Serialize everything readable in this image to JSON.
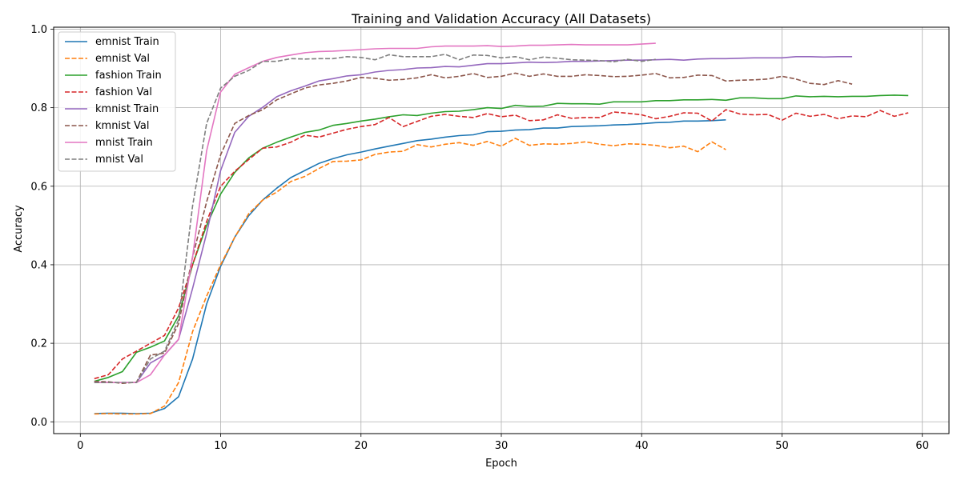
{
  "chart_data": {
    "type": "line",
    "title": "Training and Validation Accuracy (All Datasets)",
    "xlabel": "Epoch",
    "ylabel": "Accuracy",
    "xlim": [
      -1.9,
      61.9
    ],
    "ylim": [
      -0.03,
      1.005
    ],
    "xticks": [
      0,
      10,
      20,
      30,
      40,
      50,
      60
    ],
    "yticks": [
      0.0,
      0.2,
      0.4,
      0.6,
      0.8,
      1.0
    ],
    "grid": true,
    "legend_position": "top-left",
    "series": [
      {
        "name": "emnist Train",
        "color": "#1f77b4",
        "dash": "solid",
        "x": [
          1,
          2,
          3,
          4,
          5,
          6,
          7,
          8,
          9,
          10,
          11,
          12,
          13,
          14,
          15,
          16,
          17,
          18,
          19,
          20,
          21,
          22,
          23,
          24,
          25,
          26,
          27,
          28,
          29,
          30,
          31,
          32,
          33,
          34,
          35,
          36,
          37,
          38,
          39,
          40,
          41,
          42,
          43,
          44,
          45,
          46
        ],
        "y": [
          0.021,
          0.022,
          0.022,
          0.021,
          0.022,
          0.034,
          0.064,
          0.16,
          0.3,
          0.396,
          0.47,
          0.525,
          0.565,
          0.595,
          0.622,
          0.64,
          0.658,
          0.67,
          0.68,
          0.687,
          0.695,
          0.702,
          0.709,
          0.716,
          0.72,
          0.725,
          0.729,
          0.731,
          0.739,
          0.74,
          0.743,
          0.744,
          0.748,
          0.748,
          0.752,
          0.753,
          0.754,
          0.756,
          0.757,
          0.759,
          0.762,
          0.763,
          0.766,
          0.766,
          0.767,
          0.769
        ]
      },
      {
        "name": "emnist Val",
        "color": "#ff7f0e",
        "dash": "dashed",
        "x": [
          1,
          2,
          3,
          4,
          5,
          6,
          7,
          8,
          9,
          10,
          11,
          12,
          13,
          14,
          15,
          16,
          17,
          18,
          19,
          20,
          21,
          22,
          23,
          24,
          25,
          26,
          27,
          28,
          29,
          30,
          31,
          32,
          33,
          34,
          35,
          36,
          37,
          38,
          39,
          40,
          41,
          42,
          43,
          44,
          45,
          46
        ],
        "y": [
          0.02,
          0.021,
          0.02,
          0.02,
          0.021,
          0.04,
          0.1,
          0.23,
          0.32,
          0.4,
          0.47,
          0.53,
          0.565,
          0.585,
          0.612,
          0.625,
          0.645,
          0.663,
          0.664,
          0.667,
          0.681,
          0.687,
          0.689,
          0.706,
          0.7,
          0.707,
          0.711,
          0.704,
          0.714,
          0.702,
          0.722,
          0.704,
          0.708,
          0.707,
          0.709,
          0.713,
          0.707,
          0.703,
          0.708,
          0.707,
          0.704,
          0.698,
          0.702,
          0.688,
          0.713,
          0.693
        ]
      },
      {
        "name": "fashion Train",
        "color": "#2ca02c",
        "dash": "solid",
        "x": [
          1,
          2,
          3,
          4,
          5,
          6,
          7,
          8,
          9,
          10,
          11,
          12,
          13,
          14,
          15,
          16,
          17,
          18,
          19,
          20,
          21,
          22,
          23,
          24,
          25,
          26,
          27,
          28,
          29,
          30,
          31,
          32,
          33,
          34,
          35,
          36,
          37,
          38,
          39,
          40,
          41,
          42,
          43,
          44,
          45,
          46,
          47,
          48,
          49,
          50,
          51,
          52,
          53,
          54,
          55,
          56,
          57,
          58,
          59
        ],
        "y": [
          0.103,
          0.113,
          0.128,
          0.177,
          0.19,
          0.206,
          0.27,
          0.4,
          0.5,
          0.58,
          0.635,
          0.672,
          0.697,
          0.712,
          0.725,
          0.737,
          0.743,
          0.755,
          0.76,
          0.766,
          0.771,
          0.777,
          0.782,
          0.78,
          0.786,
          0.79,
          0.791,
          0.795,
          0.8,
          0.798,
          0.806,
          0.803,
          0.804,
          0.811,
          0.81,
          0.81,
          0.809,
          0.815,
          0.815,
          0.815,
          0.818,
          0.818,
          0.82,
          0.82,
          0.821,
          0.819,
          0.825,
          0.825,
          0.823,
          0.823,
          0.83,
          0.828,
          0.829,
          0.828,
          0.829,
          0.829,
          0.831,
          0.832,
          0.831
        ]
      },
      {
        "name": "fashion Val",
        "color": "#d62728",
        "dash": "dashed",
        "x": [
          1,
          2,
          3,
          4,
          5,
          6,
          7,
          8,
          9,
          10,
          11,
          12,
          13,
          14,
          15,
          16,
          17,
          18,
          19,
          20,
          21,
          22,
          23,
          24,
          25,
          26,
          27,
          28,
          29,
          30,
          31,
          32,
          33,
          34,
          35,
          36,
          37,
          38,
          39,
          40,
          41,
          42,
          43,
          44,
          45,
          46,
          47,
          48,
          49,
          50,
          51,
          52,
          53,
          54,
          55,
          56,
          57,
          58,
          59
        ],
        "y": [
          0.11,
          0.12,
          0.16,
          0.18,
          0.2,
          0.22,
          0.29,
          0.4,
          0.51,
          0.6,
          0.638,
          0.668,
          0.697,
          0.7,
          0.712,
          0.73,
          0.725,
          0.735,
          0.745,
          0.752,
          0.757,
          0.775,
          0.752,
          0.765,
          0.778,
          0.783,
          0.778,
          0.775,
          0.785,
          0.777,
          0.781,
          0.767,
          0.769,
          0.782,
          0.773,
          0.775,
          0.775,
          0.789,
          0.786,
          0.782,
          0.772,
          0.778,
          0.787,
          0.786,
          0.766,
          0.795,
          0.784,
          0.782,
          0.783,
          0.768,
          0.786,
          0.778,
          0.783,
          0.772,
          0.779,
          0.777,
          0.793,
          0.778,
          0.787
        ]
      },
      {
        "name": "kmnist Train",
        "color": "#9467bd",
        "dash": "solid",
        "x": [
          1,
          2,
          3,
          4,
          5,
          6,
          7,
          8,
          9,
          10,
          11,
          12,
          13,
          14,
          15,
          16,
          17,
          18,
          19,
          20,
          21,
          22,
          23,
          24,
          25,
          26,
          27,
          28,
          29,
          30,
          31,
          32,
          33,
          34,
          35,
          36,
          37,
          38,
          39,
          40,
          41,
          42,
          43,
          44,
          45,
          46,
          47,
          48,
          49,
          50,
          51,
          52,
          53,
          54,
          55
        ],
        "y": [
          0.1,
          0.1,
          0.1,
          0.1,
          0.15,
          0.17,
          0.21,
          0.34,
          0.48,
          0.64,
          0.737,
          0.778,
          0.801,
          0.828,
          0.843,
          0.855,
          0.868,
          0.874,
          0.881,
          0.884,
          0.891,
          0.895,
          0.897,
          0.901,
          0.902,
          0.905,
          0.904,
          0.908,
          0.912,
          0.912,
          0.914,
          0.916,
          0.915,
          0.916,
          0.918,
          0.918,
          0.919,
          0.92,
          0.921,
          0.921,
          0.922,
          0.923,
          0.921,
          0.924,
          0.925,
          0.925,
          0.926,
          0.927,
          0.927,
          0.927,
          0.93,
          0.93,
          0.929,
          0.93,
          0.93
        ]
      },
      {
        "name": "kmnist Val",
        "color": "#8c564b",
        "dash": "dashed",
        "x": [
          1,
          2,
          3,
          4,
          5,
          6,
          7,
          8,
          9,
          10,
          11,
          12,
          13,
          14,
          15,
          16,
          17,
          18,
          19,
          20,
          21,
          22,
          23,
          24,
          25,
          26,
          27,
          28,
          29,
          30,
          31,
          32,
          33,
          34,
          35,
          36,
          37,
          38,
          39,
          40,
          41,
          42,
          43,
          44,
          45,
          46,
          47,
          48,
          49,
          50,
          51,
          52,
          53,
          54,
          55
        ],
        "y": [
          0.103,
          0.102,
          0.098,
          0.101,
          0.17,
          0.175,
          0.25,
          0.42,
          0.56,
          0.68,
          0.76,
          0.78,
          0.795,
          0.82,
          0.835,
          0.85,
          0.858,
          0.862,
          0.868,
          0.877,
          0.875,
          0.87,
          0.872,
          0.876,
          0.884,
          0.876,
          0.88,
          0.887,
          0.877,
          0.88,
          0.888,
          0.88,
          0.886,
          0.88,
          0.88,
          0.884,
          0.882,
          0.879,
          0.88,
          0.883,
          0.887,
          0.876,
          0.877,
          0.883,
          0.882,
          0.868,
          0.87,
          0.871,
          0.873,
          0.88,
          0.873,
          0.862,
          0.859,
          0.869,
          0.86
        ]
      },
      {
        "name": "mnist Train",
        "color": "#e377c2",
        "dash": "solid",
        "x": [
          1,
          2,
          3,
          4,
          5,
          6,
          7,
          8,
          9,
          10,
          11,
          12,
          13,
          14,
          15,
          16,
          17,
          18,
          19,
          20,
          21,
          22,
          23,
          24,
          25,
          26,
          27,
          28,
          29,
          30,
          31,
          32,
          33,
          34,
          35,
          36,
          37,
          38,
          39,
          40,
          41
        ],
        "y": [
          0.1,
          0.1,
          0.1,
          0.1,
          0.12,
          0.17,
          0.21,
          0.42,
          0.69,
          0.84,
          0.885,
          0.902,
          0.918,
          0.928,
          0.934,
          0.94,
          0.943,
          0.944,
          0.946,
          0.948,
          0.95,
          0.951,
          0.951,
          0.951,
          0.955,
          0.957,
          0.957,
          0.957,
          0.958,
          0.956,
          0.957,
          0.959,
          0.959,
          0.96,
          0.961,
          0.96,
          0.96,
          0.96,
          0.96,
          0.962,
          0.964
        ]
      },
      {
        "name": "mnist Val",
        "color": "#7f7f7f",
        "dash": "dashed",
        "x": [
          1,
          2,
          3,
          4,
          5,
          6,
          7,
          8,
          9,
          10,
          11,
          12,
          13,
          14,
          15,
          16,
          17,
          18,
          19,
          20,
          21,
          22,
          23,
          24,
          25,
          26,
          27,
          28,
          29,
          30,
          31,
          32,
          33,
          34,
          35,
          36,
          37,
          38,
          39,
          40,
          41
        ],
        "y": [
          0.1,
          0.1,
          0.1,
          0.1,
          0.16,
          0.18,
          0.26,
          0.55,
          0.76,
          0.85,
          0.88,
          0.895,
          0.918,
          0.918,
          0.925,
          0.924,
          0.925,
          0.925,
          0.93,
          0.928,
          0.922,
          0.935,
          0.93,
          0.93,
          0.93,
          0.936,
          0.922,
          0.934,
          0.933,
          0.927,
          0.93,
          0.922,
          0.929,
          0.926,
          0.922,
          0.921,
          0.92,
          0.917,
          0.923,
          0.918,
          0.923
        ]
      }
    ]
  }
}
